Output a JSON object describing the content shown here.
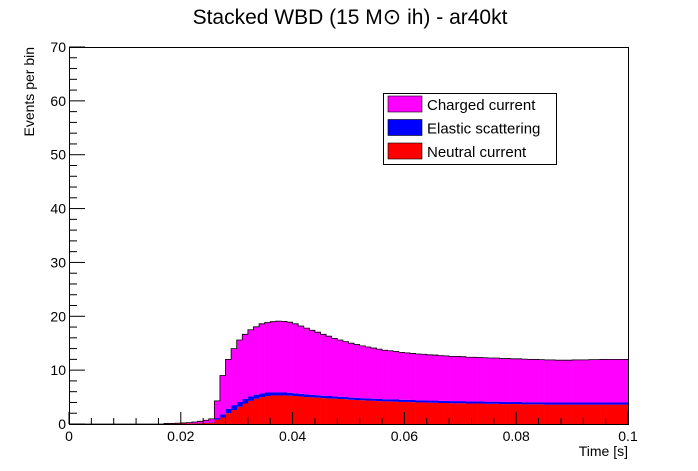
{
  "chart_data": {
    "type": "area",
    "stacked": true,
    "histogram": true,
    "title": "Stacked WBD (15 M⊙ ih) - ar40kt",
    "title_parts": {
      "before": "Stacked WBD (15 M",
      "symbol": "⊙",
      "after": " ih) - ar40kt"
    },
    "xlabel": "Time [s]",
    "ylabel": "Events per bin",
    "xlim": [
      0,
      0.1
    ],
    "ylim": [
      0,
      70
    ],
    "grid": false,
    "legend_position": "top-right",
    "x_ticks": [
      0,
      0.02,
      0.04,
      0.06,
      0.08,
      0.1
    ],
    "x_tick_labels": [
      "0",
      "0.02",
      "0.04",
      "0.06",
      "0.08",
      "0.1"
    ],
    "y_ticks": [
      0,
      10,
      20,
      30,
      40,
      50,
      60,
      70
    ],
    "y_tick_labels": [
      "0",
      "10",
      "20",
      "30",
      "40",
      "50",
      "60",
      "70"
    ],
    "bin_edges_start": 0,
    "bin_width": 0.001,
    "series": [
      {
        "name": "Neutral current",
        "color": "#ff0000",
        "values": [
          0,
          0,
          0,
          0,
          0,
          0,
          0,
          0,
          0,
          0,
          0,
          0,
          0,
          0,
          0,
          0,
          0,
          0.05,
          0.05,
          0.08,
          0.1,
          0.1,
          0.12,
          0.15,
          0.2,
          0.25,
          0.8,
          1.2,
          2.0,
          2.6,
          3.2,
          3.8,
          4.3,
          4.7,
          5.0,
          5.2,
          5.3,
          5.3,
          5.3,
          5.25,
          5.2,
          5.1,
          5.0,
          4.95,
          4.9,
          4.8,
          4.75,
          4.7,
          4.65,
          4.6,
          4.5,
          4.45,
          4.4,
          4.35,
          4.3,
          4.25,
          4.2,
          4.2,
          4.15,
          4.1,
          4.1,
          4.05,
          4.0,
          4.0,
          3.95,
          3.95,
          3.9,
          3.9,
          3.85,
          3.85,
          3.85,
          3.8,
          3.8,
          3.8,
          3.75,
          3.75,
          3.75,
          3.7,
          3.7,
          3.7,
          3.7,
          3.65,
          3.65,
          3.65,
          3.65,
          3.6,
          3.6,
          3.6,
          3.6,
          3.6,
          3.6,
          3.6,
          3.6,
          3.6,
          3.6,
          3.6,
          3.6,
          3.6,
          3.6,
          3.6
        ]
      },
      {
        "name": "Elastic scattering",
        "color": "#0000ff",
        "values": [
          0,
          0,
          0,
          0,
          0,
          0,
          0,
          0,
          0,
          0,
          0,
          0,
          0,
          0,
          0,
          0,
          0,
          0,
          0,
          0,
          0,
          0,
          0.05,
          0.05,
          0.05,
          0.1,
          0.3,
          0.6,
          0.8,
          0.9,
          0.9,
          0.85,
          0.8,
          0.75,
          0.7,
          0.65,
          0.6,
          0.6,
          0.55,
          0.55,
          0.5,
          0.5,
          0.5,
          0.45,
          0.45,
          0.45,
          0.45,
          0.4,
          0.4,
          0.4,
          0.4,
          0.4,
          0.4,
          0.4,
          0.4,
          0.4,
          0.4,
          0.4,
          0.4,
          0.4,
          0.4,
          0.4,
          0.4,
          0.4,
          0.4,
          0.4,
          0.4,
          0.4,
          0.4,
          0.4,
          0.4,
          0.4,
          0.4,
          0.4,
          0.4,
          0.4,
          0.4,
          0.4,
          0.4,
          0.4,
          0.4,
          0.4,
          0.4,
          0.4,
          0.4,
          0.4,
          0.4,
          0.4,
          0.4,
          0.4,
          0.4,
          0.4,
          0.4,
          0.4,
          0.4,
          0.4,
          0.4,
          0.4,
          0.4,
          0.4
        ]
      },
      {
        "name": "Charged current",
        "color": "#ff00ff",
        "values": [
          0,
          0,
          0,
          0,
          0,
          0,
          0,
          0,
          0,
          0,
          0,
          0,
          0,
          0,
          0,
          0,
          0,
          0.05,
          0.05,
          0.07,
          0.1,
          0.15,
          0.2,
          0.3,
          0.45,
          0.6,
          3.2,
          7.2,
          9.2,
          10.5,
          11.5,
          12.0,
          12.4,
          12.6,
          12.9,
          13.0,
          13.1,
          13.2,
          13.2,
          13.1,
          12.9,
          12.6,
          12.3,
          12.0,
          11.7,
          11.4,
          11.1,
          10.8,
          10.55,
          10.3,
          10.1,
          9.9,
          9.7,
          9.55,
          9.4,
          9.25,
          9.1,
          9.0,
          8.9,
          8.8,
          8.7,
          8.65,
          8.6,
          8.55,
          8.5,
          8.45,
          8.4,
          8.35,
          8.3,
          8.3,
          8.25,
          8.2,
          8.2,
          8.15,
          8.15,
          8.1,
          8.1,
          8.05,
          8.05,
          8.0,
          8.0,
          8.0,
          7.95,
          7.95,
          7.9,
          7.9,
          7.9,
          7.85,
          7.85,
          7.85,
          7.9,
          7.9,
          7.9,
          7.95,
          7.95,
          8.0,
          8.0,
          8.0,
          8.0,
          8.0
        ]
      }
    ],
    "legend_order": [
      "Charged current",
      "Elastic scattering",
      "Neutral current"
    ]
  }
}
